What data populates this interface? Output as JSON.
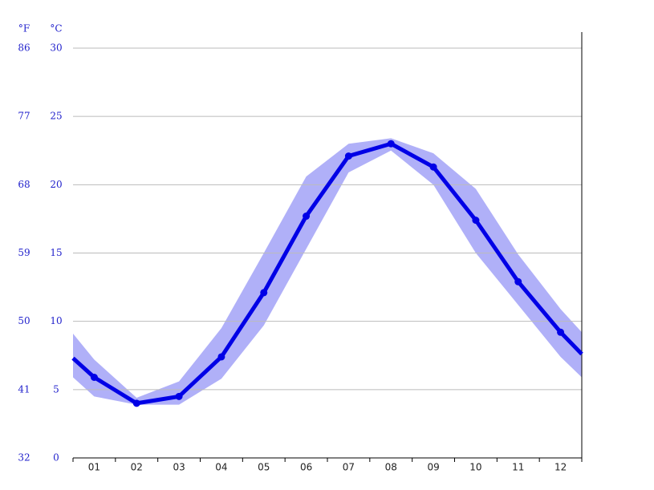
{
  "chart_data": {
    "type": "line",
    "y_unit_label": "°C",
    "y2_unit_label": "°F",
    "x": [
      0,
      0.5,
      1.5,
      2.5,
      3.5,
      4.5,
      5.5,
      6.5,
      7.5,
      8.5,
      9.5,
      10.5,
      11.5,
      12
    ],
    "xlim": [
      0,
      12
    ],
    "xticks": [
      {
        "value": 0.5,
        "label": "01"
      },
      {
        "value": 1.5,
        "label": "02"
      },
      {
        "value": 2.5,
        "label": "03"
      },
      {
        "value": 3.5,
        "label": "04"
      },
      {
        "value": 4.5,
        "label": "05"
      },
      {
        "value": 5.5,
        "label": "06"
      },
      {
        "value": 6.5,
        "label": "07"
      },
      {
        "value": 7.5,
        "label": "08"
      },
      {
        "value": 8.5,
        "label": "09"
      },
      {
        "value": 9.5,
        "label": "10"
      },
      {
        "value": 10.5,
        "label": "11"
      },
      {
        "value": 11.5,
        "label": "12"
      }
    ],
    "xminorticks": [
      0,
      1,
      2,
      3,
      4,
      5,
      6,
      7,
      8,
      9,
      10,
      11,
      12
    ],
    "ylim": [
      0,
      30
    ],
    "yticks": [
      0,
      5,
      10,
      15,
      20,
      25,
      30
    ],
    "y2lim": [
      32,
      86
    ],
    "y2ticks": [
      32,
      41,
      50,
      59,
      68,
      77,
      86
    ],
    "grid": true,
    "series": [
      {
        "color": "#0000e6",
        "values": [
          7.3,
          5.9,
          4.0,
          4.5,
          7.4,
          12.1,
          17.7,
          22.1,
          23.0,
          21.3,
          17.4,
          12.9,
          9.2,
          7.6
        ]
      },
      {
        "color": "#b0b0f8",
        "values": [
          9.1,
          7.2,
          4.4,
          5.6,
          9.5,
          15.0,
          20.6,
          23.0,
          23.4,
          22.3,
          19.7,
          14.9,
          10.9,
          9.2
        ]
      },
      {
        "color": "#b0b0f8",
        "values": [
          5.9,
          4.5,
          3.9,
          3.9,
          5.8,
          9.7,
          15.3,
          20.9,
          22.5,
          20.0,
          15.0,
          11.2,
          7.4,
          5.9
        ]
      }
    ]
  }
}
